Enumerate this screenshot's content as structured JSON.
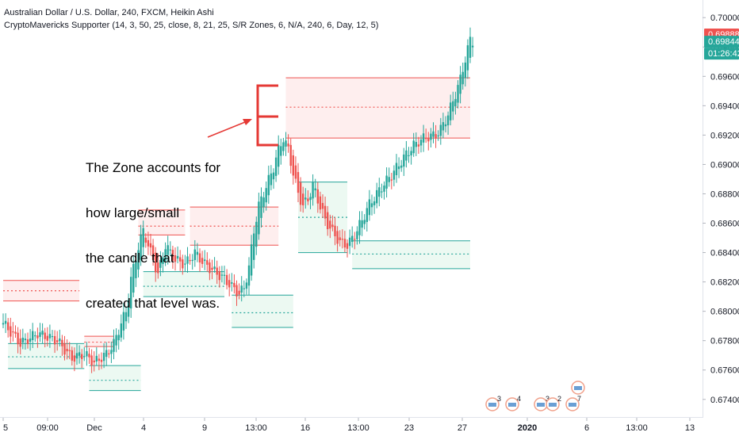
{
  "header": {
    "title": "Australian Dollar / U.S. Dollar, 240, FXCM, Heikin Ashi",
    "indicator": "CryptoMavericks Supporter (14, 3, 50, 25, close, 8, 21, 25, S/R Zones, 6, N/A, 240, 6, Day, 12, 5)"
  },
  "annotation": {
    "lines": [
      "The Zone accounts for",
      "how large/small",
      "the candle that",
      "created that level was."
    ]
  },
  "price_tags": {
    "high": "0.69888",
    "last": "0.69844",
    "countdown": "01:26:42"
  },
  "event_badges": [
    "3",
    "4",
    "3",
    "2",
    "7"
  ],
  "colors": {
    "up": "#26a69a",
    "down": "#ef5350",
    "resistance_fill": "#fde8e8",
    "support_fill": "#e6f7ee",
    "arrow": "#e53935",
    "tag_red": "#ef5350",
    "tag_green": "#26a69a",
    "tag_dark": "#131722"
  },
  "chart_data": {
    "type": "candlestick",
    "title": "Australian Dollar / U.S. Dollar, 240, FXCM, Heikin Ashi",
    "y_axis": {
      "side": "right",
      "range": [
        0.6728,
        0.7012
      ],
      "ticks": [
        "0.67400",
        "0.67600",
        "0.67800",
        "0.68000",
        "0.68200",
        "0.68400",
        "0.68600",
        "0.68800",
        "0.69000",
        "0.69200",
        "0.69400",
        "0.69600",
        "0.69800",
        "0.70000"
      ]
    },
    "x_axis": {
      "labels": [
        "5",
        "09:00",
        "Dec",
        "4",
        "9",
        "13:00",
        "16",
        "13:00",
        "23",
        "27",
        "2020",
        "6",
        "13:00",
        "13"
      ]
    },
    "grid": false,
    "candle_anchors": [
      [
        0,
        0.6792
      ],
      [
        7,
        0.6778
      ],
      [
        14,
        0.6785
      ],
      [
        22,
        0.678
      ],
      [
        28,
        0.6768
      ],
      [
        33,
        0.6771
      ],
      [
        37,
        0.6765
      ],
      [
        42,
        0.6771
      ],
      [
        45,
        0.6778
      ],
      [
        48,
        0.6792
      ],
      [
        50,
        0.68
      ],
      [
        52,
        0.6822
      ],
      [
        55,
        0.6844
      ],
      [
        57,
        0.6855
      ],
      [
        60,
        0.684
      ],
      [
        63,
        0.6825
      ],
      [
        66,
        0.6845
      ],
      [
        70,
        0.6835
      ],
      [
        74,
        0.6832
      ],
      [
        78,
        0.684
      ],
      [
        82,
        0.6832
      ],
      [
        86,
        0.6827
      ],
      [
        90,
        0.6822
      ],
      [
        94,
        0.6815
      ],
      [
        96,
        0.6812
      ],
      [
        98,
        0.6816
      ],
      [
        100,
        0.683
      ],
      [
        102,
        0.6855
      ],
      [
        104,
        0.6872
      ],
      [
        107,
        0.6885
      ],
      [
        110,
        0.6898
      ],
      [
        112,
        0.691
      ],
      [
        114,
        0.6918
      ],
      [
        116,
        0.691
      ],
      [
        118,
        0.6894
      ],
      [
        120,
        0.688
      ],
      [
        122,
        0.6872
      ],
      [
        124,
        0.6876
      ],
      [
        126,
        0.6886
      ],
      [
        128,
        0.6876
      ],
      [
        131,
        0.6862
      ],
      [
        134,
        0.6854
      ],
      [
        137,
        0.6847
      ],
      [
        140,
        0.6845
      ],
      [
        143,
        0.6852
      ],
      [
        146,
        0.6862
      ],
      [
        149,
        0.6873
      ],
      [
        152,
        0.688
      ],
      [
        155,
        0.6887
      ],
      [
        158,
        0.6893
      ],
      [
        161,
        0.69
      ],
      [
        164,
        0.6907
      ],
      [
        167,
        0.6913
      ],
      [
        170,
        0.6917
      ],
      [
        173,
        0.6919
      ],
      [
        176,
        0.692
      ],
      [
        178,
        0.6924
      ],
      [
        181,
        0.6934
      ],
      [
        184,
        0.6948
      ],
      [
        186,
        0.6958
      ],
      [
        188,
        0.6972
      ],
      [
        190,
        0.6985
      ],
      [
        191,
        0.6984
      ]
    ],
    "last_price": 0.69844,
    "high_price": 0.69888,
    "zones": [
      {
        "kind": "resistance",
        "x_from": 0,
        "x_to": 31,
        "top": 0.6821,
        "bottom": 0.6807,
        "mid": 0.6814
      },
      {
        "kind": "support",
        "x_from": 2,
        "x_to": 33,
        "top": 0.6778,
        "bottom": 0.6761,
        "mid": 0.6769
      },
      {
        "kind": "resistance",
        "x_from": 33,
        "x_to": 45,
        "top": 0.6783,
        "bottom": 0.6776,
        "mid": 0.6779
      },
      {
        "kind": "support",
        "x_from": 35,
        "x_to": 56,
        "top": 0.6763,
        "bottom": 0.6746,
        "mid": 0.6753
      },
      {
        "kind": "resistance",
        "x_from": 55,
        "x_to": 74,
        "top": 0.6869,
        "bottom": 0.6852,
        "mid": 0.6858
      },
      {
        "kind": "support",
        "x_from": 57,
        "x_to": 90,
        "top": 0.6827,
        "bottom": 0.681,
        "mid": 0.6817
      },
      {
        "kind": "resistance",
        "x_from": 76,
        "x_to": 112,
        "top": 0.6871,
        "bottom": 0.6845,
        "mid": 0.6858
      },
      {
        "kind": "support",
        "x_from": 93,
        "x_to": 118,
        "top": 0.6811,
        "bottom": 0.6789,
        "mid": 0.6799
      },
      {
        "kind": "resistance",
        "x_from": 115,
        "x_to": 190,
        "top": 0.6959,
        "bottom": 0.6918,
        "mid": 0.6939
      },
      {
        "kind": "support",
        "x_from": 120,
        "x_to": 140,
        "top": 0.6888,
        "bottom": 0.684,
        "mid": 0.6864
      },
      {
        "kind": "support",
        "x_from": 142,
        "x_to": 190,
        "top": 0.6848,
        "bottom": 0.6829,
        "mid": 0.6839
      }
    ]
  }
}
